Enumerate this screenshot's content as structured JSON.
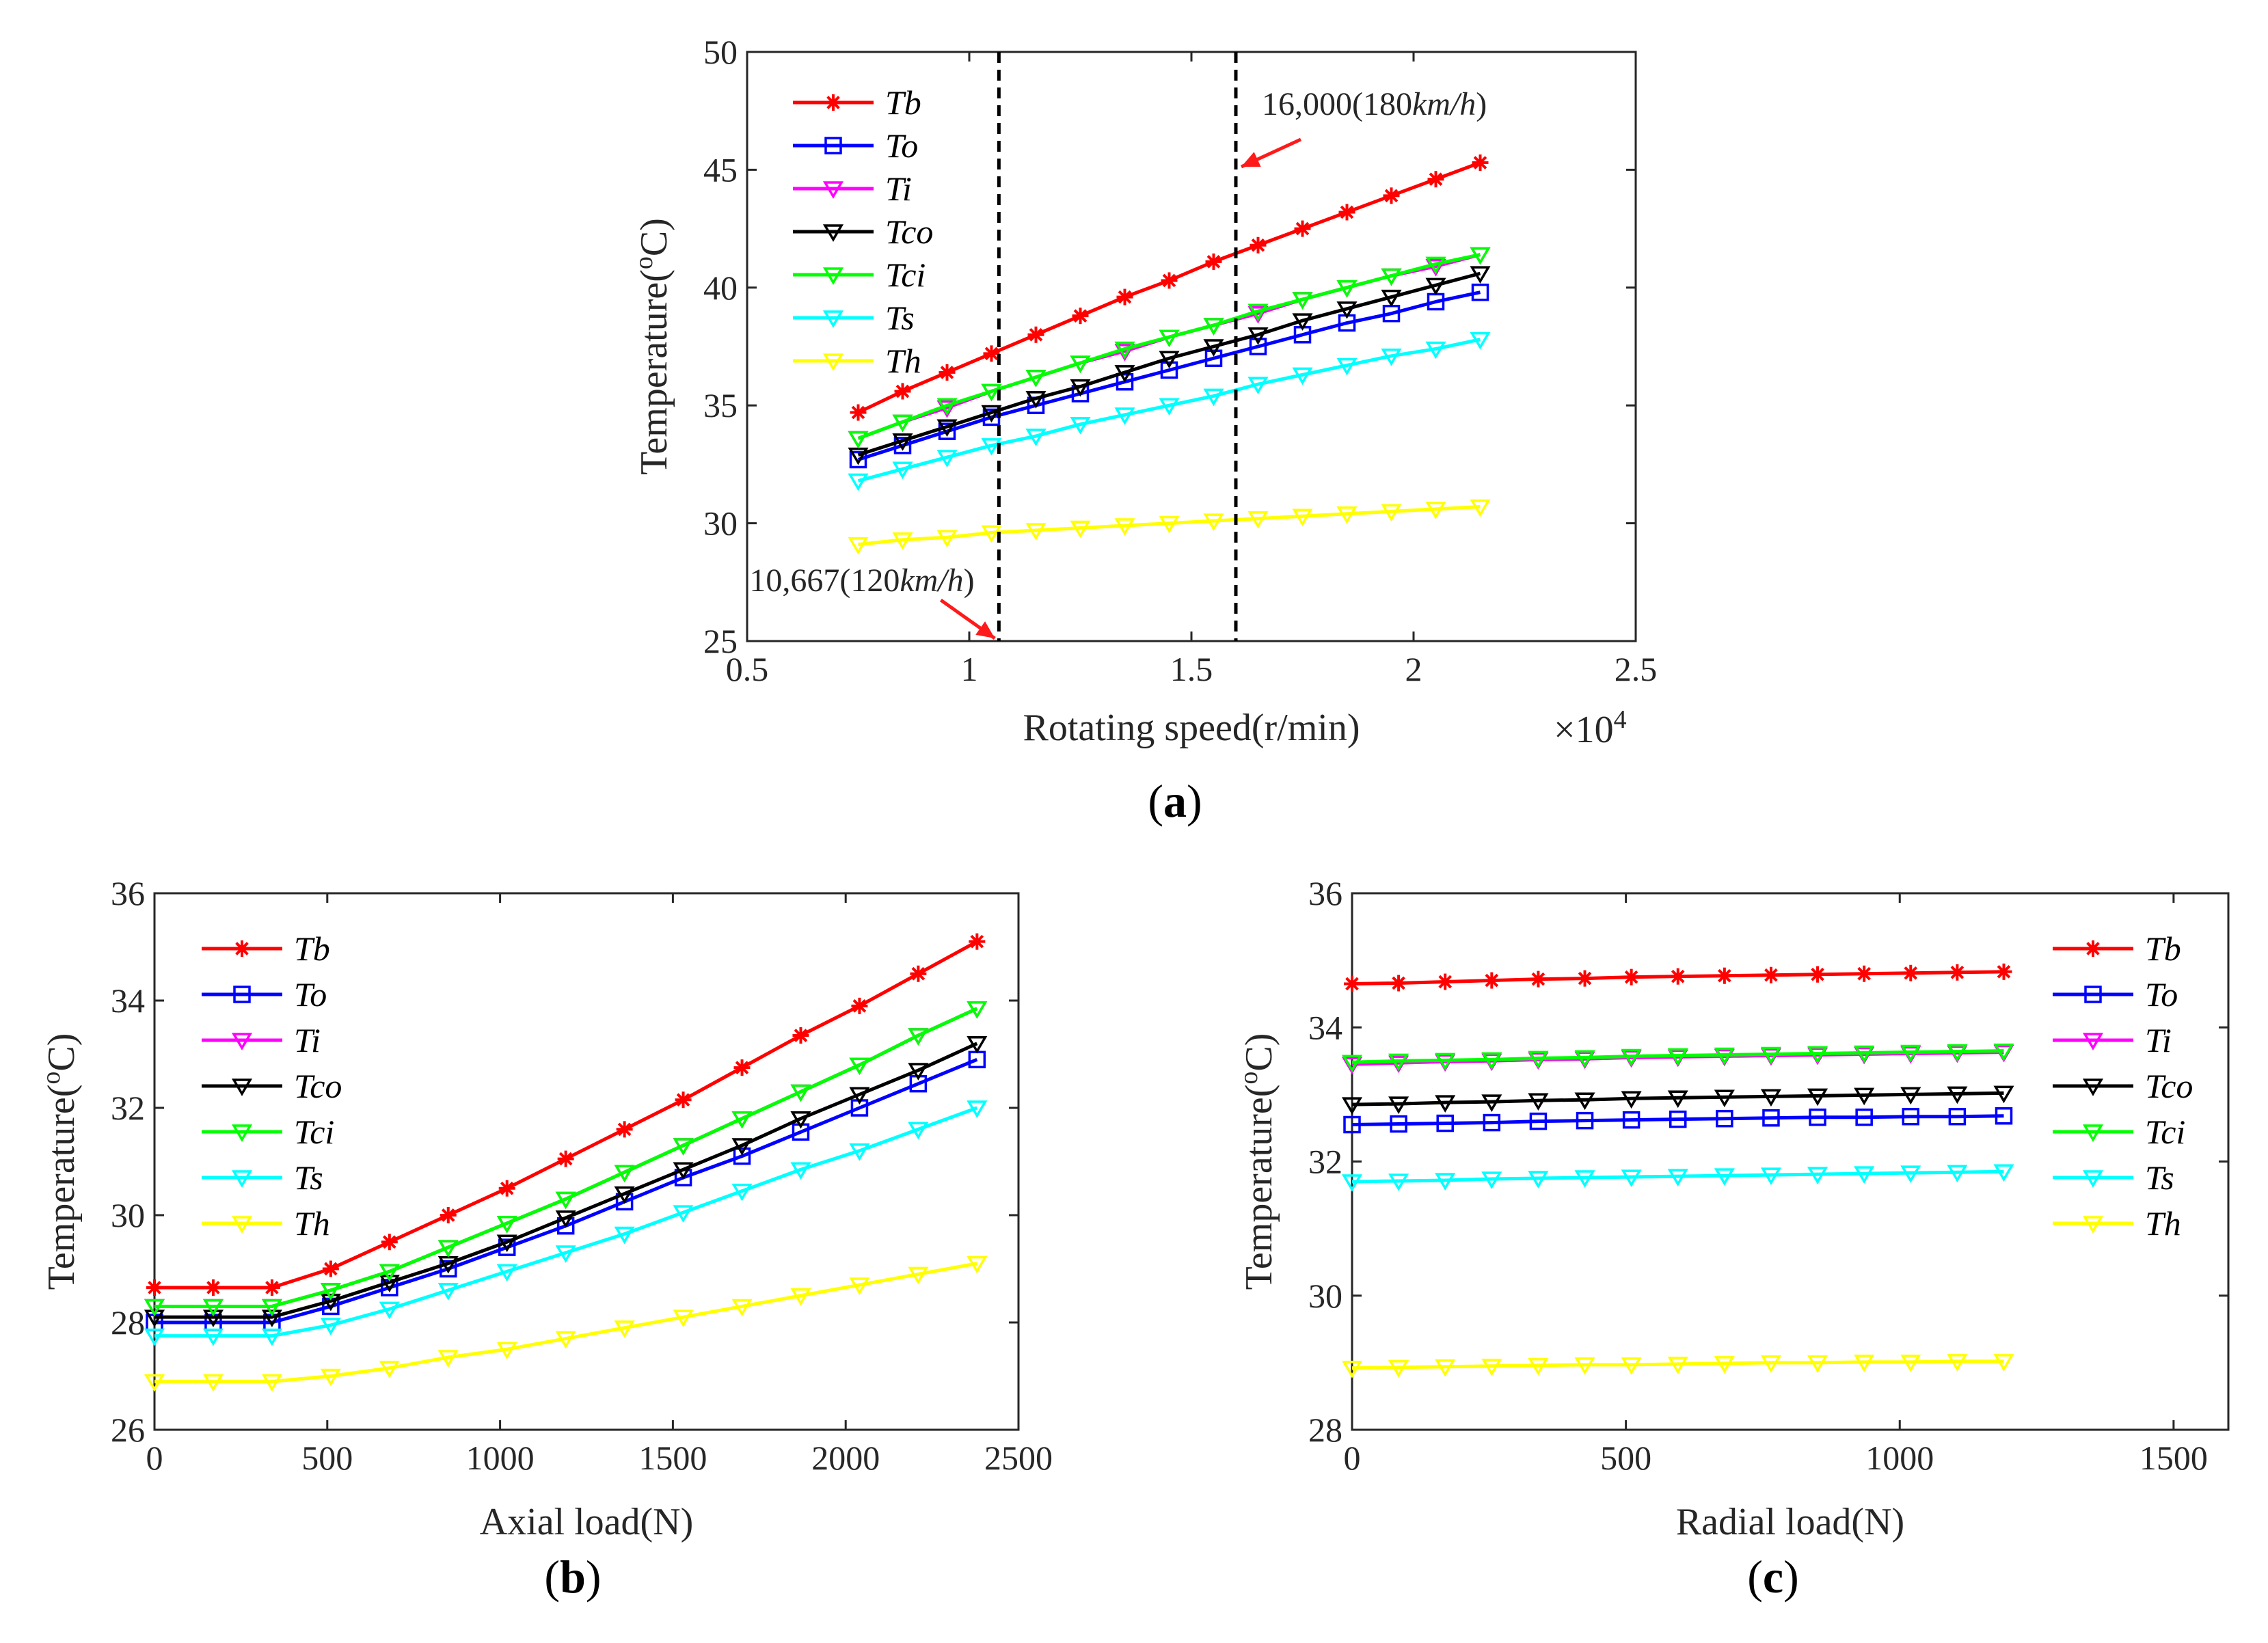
{
  "figure": {
    "captions": [
      "(a)",
      "(b)",
      "(c)"
    ],
    "legend_labels": [
      "Tb",
      "To",
      "Ti",
      "Tco",
      "Tci",
      "Ts",
      "Th"
    ]
  },
  "series_colors": {
    "Tb": "#ff0000",
    "To": "#0000ff",
    "Ti": "#ff00ff",
    "Tco": "#000000",
    "Tci": "#00ff00",
    "Ts": "#00ffff",
    "Th": "#ffff00"
  },
  "series_markers": {
    "Tb": "asterisk",
    "To": "square",
    "Ti": "triangle-down",
    "Tco": "triangle-down",
    "Tci": "triangle-down",
    "Ts": "triangle-down",
    "Th": "triangle-down"
  },
  "chart_data": [
    {
      "id": "a",
      "type": "line",
      "caption": "(a)",
      "xlabel": "Rotating speed(r/min)",
      "ylabel": "Temperature(°C)",
      "ylabel_base": "Temperature(",
      "ylabel_sup": "o",
      "ylabel_end": "C)",
      "x_multiplier": "×10",
      "x_multiplier_exp": "4",
      "xlim": [
        0.5,
        2.5
      ],
      "ylim": [
        25,
        50
      ],
      "xticks": [
        0.5,
        1,
        1.5,
        2,
        2.5
      ],
      "xtick_labels": [
        "0.5",
        "1",
        "1.5",
        "2",
        "2.5"
      ],
      "yticks": [
        25,
        30,
        35,
        40,
        45,
        50
      ],
      "ytick_labels": [
        "25",
        "30",
        "35",
        "40",
        "45",
        "50"
      ],
      "legend_position": "top-left",
      "annotations": [
        {
          "text_num": "16,000",
          "text_pre": "(180",
          "text_unit": "km/h",
          "text_post": ")",
          "x": 1.6,
          "type": "dashed-vline"
        },
        {
          "text_num": "10,667",
          "text_pre": "(120",
          "text_unit": "km/h",
          "text_post": ")",
          "x": 1.0667,
          "type": "dashed-vline"
        }
      ],
      "x": [
        0.75,
        0.85,
        0.95,
        1.05,
        1.15,
        1.25,
        1.35,
        1.45,
        1.55,
        1.65,
        1.75,
        1.85,
        1.95,
        2.05,
        2.15
      ],
      "series": [
        {
          "name": "Tb",
          "values": [
            34.7,
            35.6,
            36.4,
            37.2,
            38.0,
            38.8,
            39.6,
            40.3,
            41.1,
            41.8,
            42.5,
            43.2,
            43.9,
            44.6,
            45.3
          ]
        },
        {
          "name": "To",
          "values": [
            32.7,
            33.3,
            33.9,
            34.5,
            35.0,
            35.5,
            36.0,
            36.5,
            37.0,
            37.5,
            38.0,
            38.5,
            38.9,
            39.4,
            39.8
          ]
        },
        {
          "name": "Ti",
          "values": [
            33.6,
            34.3,
            34.9,
            35.6,
            36.2,
            36.8,
            37.3,
            37.9,
            38.4,
            38.9,
            39.5,
            40.0,
            40.5,
            40.9,
            41.4
          ]
        },
        {
          "name": "Tco",
          "values": [
            32.9,
            33.5,
            34.1,
            34.7,
            35.3,
            35.8,
            36.4,
            37.0,
            37.5,
            38.0,
            38.6,
            39.1,
            39.6,
            40.1,
            40.6
          ]
        },
        {
          "name": "Tci",
          "values": [
            33.6,
            34.3,
            35.0,
            35.6,
            36.2,
            36.8,
            37.4,
            37.9,
            38.4,
            39.0,
            39.5,
            40.0,
            40.5,
            41.0,
            41.4
          ]
        },
        {
          "name": "Ts",
          "values": [
            31.8,
            32.3,
            32.8,
            33.3,
            33.7,
            34.2,
            34.6,
            35.0,
            35.4,
            35.9,
            36.3,
            36.7,
            37.1,
            37.4,
            37.8
          ]
        },
        {
          "name": "Th",
          "values": [
            29.1,
            29.3,
            29.4,
            29.6,
            29.7,
            29.8,
            29.9,
            30.0,
            30.1,
            30.2,
            30.3,
            30.4,
            30.5,
            30.6,
            30.7
          ]
        }
      ]
    },
    {
      "id": "b",
      "type": "line",
      "caption": "(b)",
      "xlabel": "Axial load(N)",
      "ylabel": "Temperature(°C)",
      "ylabel_base": "Temperature(",
      "ylabel_sup": "o",
      "ylabel_end": "C)",
      "xlim": [
        0,
        2500
      ],
      "ylim": [
        26,
        36
      ],
      "xticks": [
        0,
        500,
        1000,
        1500,
        2000,
        2500
      ],
      "xtick_labels": [
        "0",
        "500",
        "1000",
        "1500",
        "2000",
        "2500"
      ],
      "yticks": [
        26,
        28,
        30,
        32,
        34,
        36
      ],
      "ytick_labels": [
        "26",
        "28",
        "30",
        "32",
        "34",
        "36"
      ],
      "legend_position": "top-left",
      "x": [
        0,
        170,
        340,
        510,
        680,
        850,
        1020,
        1190,
        1360,
        1530,
        1700,
        1870,
        2040,
        2210,
        2380
      ],
      "series": [
        {
          "name": "Tb",
          "values": [
            28.65,
            28.65,
            28.65,
            29.0,
            29.5,
            30.0,
            30.5,
            31.05,
            31.6,
            32.15,
            32.75,
            33.35,
            33.9,
            34.5,
            35.1
          ]
        },
        {
          "name": "To",
          "values": [
            28.0,
            28.0,
            28.0,
            28.3,
            28.65,
            29.0,
            29.4,
            29.8,
            30.25,
            30.7,
            31.1,
            31.55,
            32.0,
            32.45,
            32.9
          ]
        },
        {
          "name": "Ti",
          "values": [
            28.3,
            28.3,
            28.3,
            28.6,
            28.95,
            29.4,
            29.85,
            30.3,
            30.8,
            31.3,
            31.8,
            32.3,
            32.8,
            33.35,
            33.85
          ]
        },
        {
          "name": "Tco",
          "values": [
            28.1,
            28.1,
            28.1,
            28.4,
            28.75,
            29.1,
            29.5,
            29.95,
            30.4,
            30.85,
            31.3,
            31.8,
            32.25,
            32.7,
            33.2
          ]
        },
        {
          "name": "Tci",
          "values": [
            28.3,
            28.3,
            28.3,
            28.6,
            28.95,
            29.4,
            29.85,
            30.3,
            30.8,
            31.3,
            31.8,
            32.3,
            32.8,
            33.35,
            33.85
          ]
        },
        {
          "name": "Ts",
          "values": [
            27.75,
            27.75,
            27.75,
            27.95,
            28.25,
            28.6,
            28.95,
            29.3,
            29.65,
            30.05,
            30.45,
            30.85,
            31.2,
            31.6,
            32.0
          ]
        },
        {
          "name": "Th",
          "values": [
            26.9,
            26.9,
            26.9,
            27.0,
            27.15,
            27.35,
            27.5,
            27.7,
            27.9,
            28.1,
            28.3,
            28.5,
            28.7,
            28.9,
            29.1
          ]
        }
      ]
    },
    {
      "id": "c",
      "type": "line",
      "caption": "(c)",
      "xlabel": "Radial load(N)",
      "ylabel": "Temperature(°C)",
      "ylabel_base": "Temperature(",
      "ylabel_sup": "o",
      "ylabel_end": "C)",
      "xlim": [
        0,
        1600
      ],
      "ylim": [
        28,
        36
      ],
      "xticks": [
        0,
        500,
        1000,
        1500
      ],
      "xtick_labels": [
        "0",
        "500",
        "1000",
        "1500"
      ],
      "yticks": [
        28,
        30,
        32,
        34,
        36
      ],
      "ytick_labels": [
        "28",
        "30",
        "32",
        "34",
        "36"
      ],
      "legend_position": "top-right-outside",
      "x": [
        0,
        85,
        170,
        255,
        340,
        425,
        510,
        595,
        680,
        765,
        850,
        935,
        1020,
        1105,
        1190
      ],
      "series": [
        {
          "name": "Tb",
          "values": [
            34.65,
            34.66,
            34.68,
            34.7,
            34.72,
            34.73,
            34.75,
            34.76,
            34.77,
            34.78,
            34.79,
            34.8,
            34.81,
            34.82,
            34.83
          ]
        },
        {
          "name": "To",
          "values": [
            32.55,
            32.56,
            32.57,
            32.58,
            32.6,
            32.61,
            32.62,
            32.63,
            32.64,
            32.65,
            32.66,
            32.66,
            32.67,
            32.67,
            32.68
          ]
        },
        {
          "name": "Ti",
          "values": [
            33.45,
            33.47,
            33.49,
            33.5,
            33.52,
            33.53,
            33.55,
            33.56,
            33.57,
            33.58,
            33.59,
            33.6,
            33.61,
            33.62,
            33.63
          ]
        },
        {
          "name": "Tco",
          "values": [
            32.85,
            32.86,
            32.88,
            32.89,
            32.91,
            32.92,
            32.94,
            32.95,
            32.96,
            32.97,
            32.98,
            32.99,
            33.0,
            33.01,
            33.02
          ]
        },
        {
          "name": "Tci",
          "values": [
            33.48,
            33.5,
            33.51,
            33.52,
            33.54,
            33.55,
            33.57,
            33.58,
            33.59,
            33.6,
            33.61,
            33.62,
            33.63,
            33.64,
            33.65
          ]
        },
        {
          "name": "Ts",
          "values": [
            31.7,
            31.71,
            31.72,
            31.74,
            31.75,
            31.76,
            31.77,
            31.78,
            31.79,
            31.8,
            31.81,
            31.82,
            31.83,
            31.84,
            31.85
          ]
        },
        {
          "name": "Th",
          "values": [
            28.92,
            28.93,
            28.94,
            28.95,
            28.96,
            28.97,
            28.97,
            28.98,
            28.99,
            29.0,
            29.0,
            29.01,
            29.01,
            29.02,
            29.02
          ]
        }
      ]
    }
  ]
}
